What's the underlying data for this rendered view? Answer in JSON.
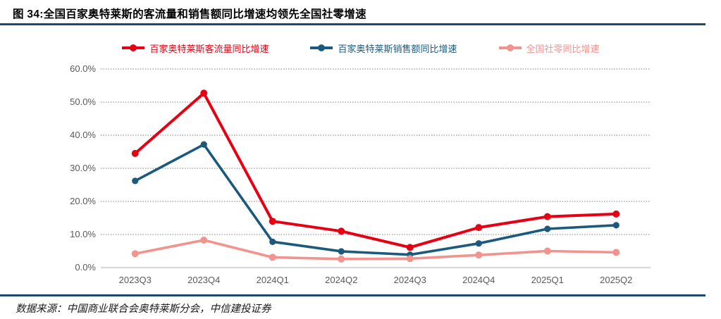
{
  "figure": {
    "title": "图 34:全国百家奥特莱斯的客流量和销售额同比增速均领先全国社零增速",
    "source_note": "数据来源：中国商业联合会奥特莱斯分会，中信建投证券"
  },
  "colors": {
    "divider_rule": "#1c4a68",
    "series_visitor_red": "#e60013",
    "series_sales_blue": "#1b5a7d",
    "series_retail_pink": "#f2938e",
    "axis_label_gray": "#595959",
    "gridline_gray": "#7f7f7f",
    "axis_line_gray": "#bfbfbf"
  },
  "chart_data": {
    "type": "line",
    "title": "图 34:全国百家奥特莱斯的客流量和销售额同比增速均领先全国社零增速",
    "categories": [
      "2023Q3",
      "2023Q4",
      "2024Q1",
      "2024Q2",
      "2024Q3",
      "2024Q4",
      "2025Q1",
      "2025Q2"
    ],
    "series": [
      {
        "name": "百家奥特莱斯客流量同比增速",
        "color_key": "series_visitor_red",
        "values": [
          34.5,
          52.7,
          14.0,
          11.0,
          6.1,
          12.1,
          15.4,
          16.2
        ]
      },
      {
        "name": "百家奥特莱斯销售额同比增速",
        "color_key": "series_sales_blue",
        "values": [
          26.2,
          37.2,
          7.8,
          4.9,
          3.9,
          7.3,
          11.7,
          12.8
        ]
      },
      {
        "name": "全国社零同比增速",
        "color_key": "series_retail_pink",
        "values": [
          4.2,
          8.3,
          3.1,
          2.6,
          2.7,
          3.8,
          5.0,
          4.6
        ]
      }
    ],
    "y_ticks": [
      {
        "label": "60.0%",
        "value": 60
      },
      {
        "label": "50.0%",
        "value": 50
      },
      {
        "label": "40.0%",
        "value": 40
      },
      {
        "label": "30.0%",
        "value": 30
      },
      {
        "label": "20.0%",
        "value": 20
      },
      {
        "label": "10.0%",
        "value": 10
      },
      {
        "label": "0.0%",
        "value": 0
      }
    ],
    "ylim": [
      0,
      60
    ],
    "xlabel": "",
    "ylabel": "",
    "grid": "horizontal-dashed",
    "legend_position": "top"
  }
}
